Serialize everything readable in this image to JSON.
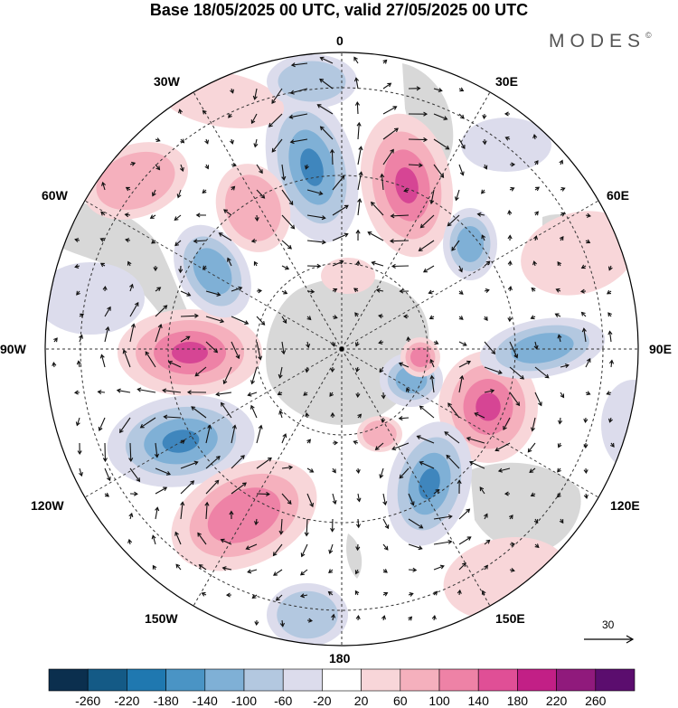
{
  "title": "Base 18/05/2025 00 UTC, valid 27/05/2025 00 UTC",
  "logo": "MODES",
  "logo_mark": "©",
  "longitude_labels": {
    "top": "0",
    "bottom": "180",
    "left": "90W",
    "right": "90E",
    "upper_left_1": "30W",
    "upper_left_2": "60W",
    "upper_right_1": "30E",
    "upper_right_2": "60E",
    "lower_left_1": "120W",
    "lower_left_2": "150W",
    "lower_right_1": "120E",
    "lower_right_2": "150E"
  },
  "vector_scale": "30",
  "colorbar": {
    "ticks": [
      "-260",
      "-220",
      "-180",
      "-140",
      "-100",
      "-60",
      "-20",
      "20",
      "60",
      "100",
      "140",
      "180",
      "220",
      "260"
    ],
    "colors": [
      "#0b2f4e",
      "#145a86",
      "#1f78b0",
      "#4a94c5",
      "#7fb0d6",
      "#b3c8e0",
      "#dcdcec",
      "#ffffff",
      "#f8d6d9",
      "#f5b0bd",
      "#ee82a6",
      "#e04f96",
      "#c21f86",
      "#901a7c",
      "#5b0d6e"
    ]
  },
  "anomaly_colors": {
    "pos1": "#f8d6d9",
    "pos2": "#f5b0bd",
    "pos3": "#ee82a6",
    "pos4": "#d64594",
    "neg1": "#dcdcec",
    "neg2": "#b3c8e0",
    "neg3": "#7fb0d6",
    "neg4": "#3f86bd",
    "land": "#d8d8d8"
  }
}
